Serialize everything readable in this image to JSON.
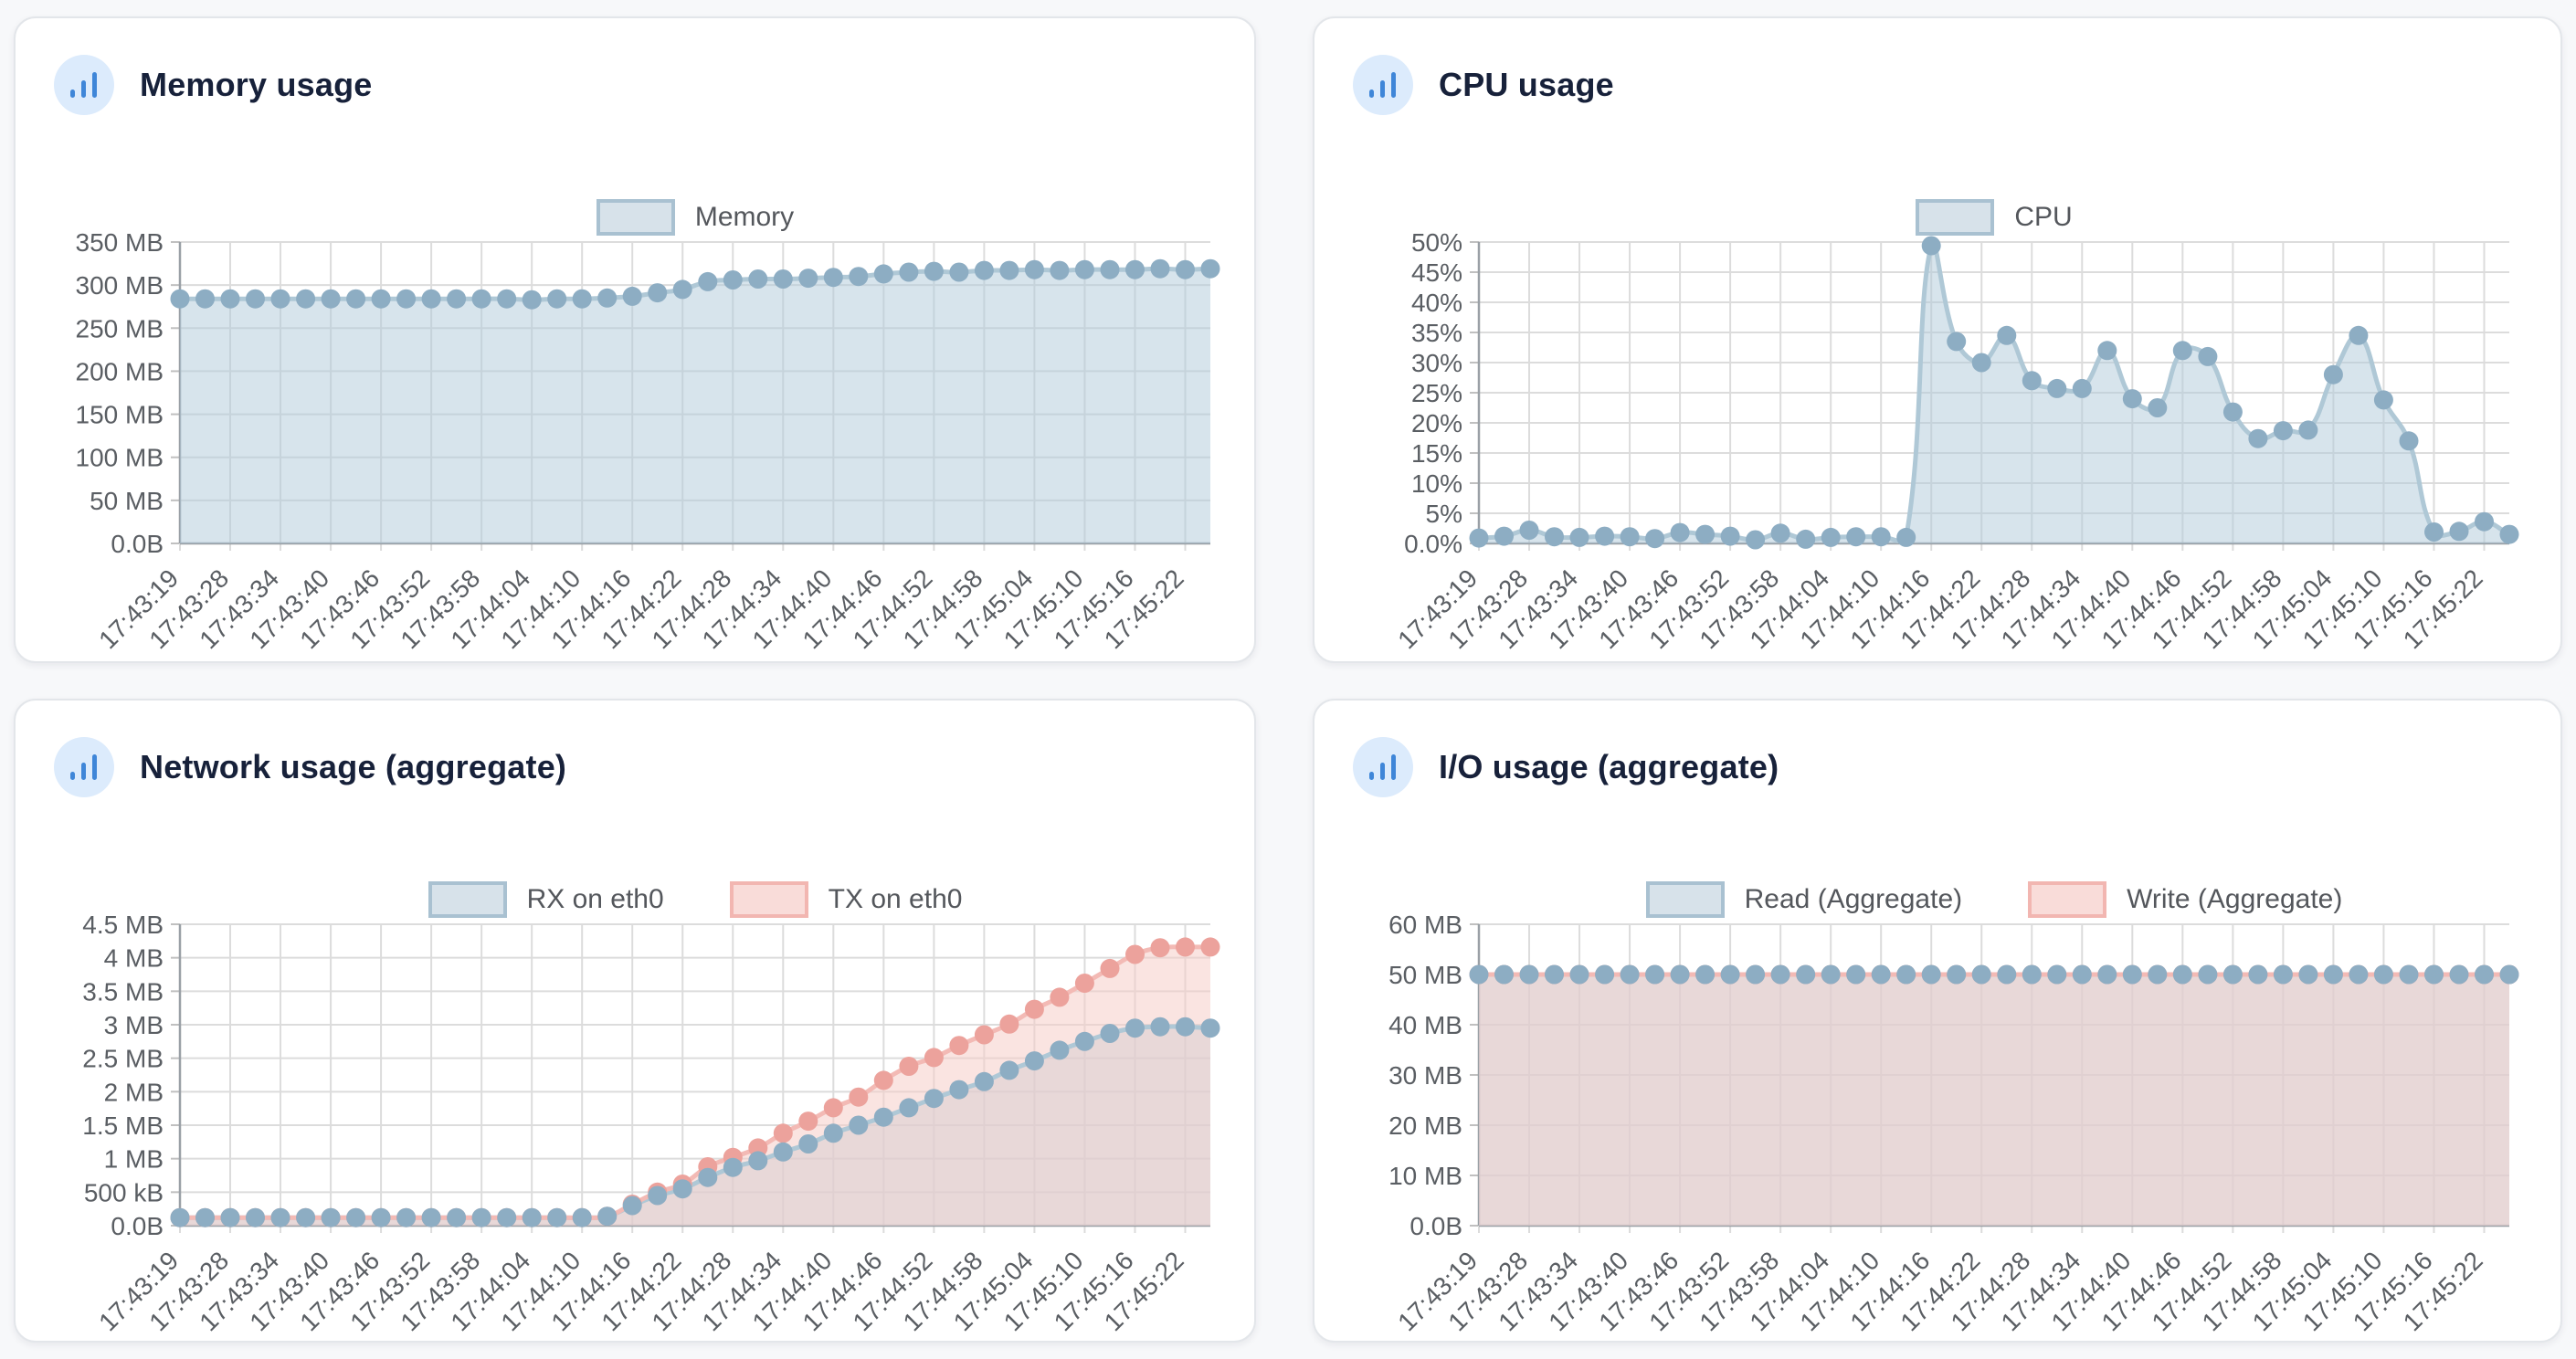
{
  "page": {
    "background_color": "#f7f8fa",
    "card_background": "#ffffff",
    "card_border_color": "#e3e6ea",
    "title_color": "#17213a",
    "icon_circle_color": "#dcebfc",
    "icon_bar_color": "#3f86d8",
    "gridline_color": "#dcdcdc",
    "axis_color": "#9aa0a6",
    "tick_label_color": "#5a5e63",
    "legend_label_color": "#54575c"
  },
  "palette": {
    "blue": {
      "line": "#afc8d6",
      "fill": "rgba(176,201,217,0.5)",
      "dot": "#8dadc3",
      "swatch_fill": "#d7e2ea",
      "swatch_border": "#a9c1d1"
    },
    "pink": {
      "line": "#f3bab5",
      "fill": "rgba(246,205,201,0.55)",
      "dot": "#eca29c",
      "swatch_fill": "#f9dcd9",
      "swatch_border": "#f2b6b1"
    }
  },
  "chart_data": [
    {
      "id": "memory",
      "type": "area",
      "title": "Memory usage",
      "icon": "bar-chart-icon",
      "legend_position": "top-center",
      "grid": true,
      "x_tick_labels": [
        "17:43:19",
        "17:43:28",
        "17:43:34",
        "17:43:40",
        "17:43:46",
        "17:43:52",
        "17:43:58",
        "17:44:04",
        "17:44:10",
        "17:44:16",
        "17:44:22",
        "17:44:28",
        "17:44:34",
        "17:44:40",
        "17:44:46",
        "17:44:52",
        "17:44:58",
        "17:45:04",
        "17:45:10",
        "17:45:16",
        "17:45:22"
      ],
      "labels_every_n_points": 2,
      "y_tick_labels": [
        "350 MB",
        "300 MB",
        "250 MB",
        "200 MB",
        "150 MB",
        "100 MB",
        "50 MB",
        "0.0B"
      ],
      "y_max": 350,
      "y_unit": "MB",
      "series": [
        {
          "name": "Memory",
          "color": "blue",
          "values": [
            284,
            284,
            284,
            284,
            284,
            284,
            284,
            284,
            284,
            284,
            284,
            284,
            284,
            284,
            283,
            284,
            284,
            285,
            287,
            291,
            295,
            304,
            306,
            307,
            307,
            308,
            309,
            310,
            313,
            315,
            316,
            315,
            317,
            317,
            318,
            317,
            318,
            318,
            318,
            319,
            318,
            319
          ]
        }
      ]
    },
    {
      "id": "cpu",
      "type": "area",
      "title": "CPU usage",
      "icon": "bar-chart-icon",
      "legend_position": "top-center",
      "grid": true,
      "x_tick_labels": [
        "17:43:19",
        "17:43:28",
        "17:43:34",
        "17:43:40",
        "17:43:46",
        "17:43:52",
        "17:43:58",
        "17:44:04",
        "17:44:10",
        "17:44:16",
        "17:44:22",
        "17:44:28",
        "17:44:34",
        "17:44:40",
        "17:44:46",
        "17:44:52",
        "17:44:58",
        "17:45:04",
        "17:45:10",
        "17:45:16",
        "17:45:22"
      ],
      "labels_every_n_points": 2,
      "y_tick_labels": [
        "50%",
        "45%",
        "40%",
        "35%",
        "30%",
        "25%",
        "20%",
        "15%",
        "10%",
        "5%",
        "0.0%"
      ],
      "y_max": 50,
      "y_unit": "%",
      "series": [
        {
          "name": "CPU",
          "color": "blue",
          "values": [
            0.9,
            1.2,
            2.2,
            1.1,
            1.0,
            1.2,
            1.1,
            0.8,
            1.8,
            1.5,
            1.2,
            0.6,
            1.7,
            0.7,
            1.0,
            1.1,
            1.1,
            1.0,
            49.4,
            33.5,
            30.0,
            34.5,
            27.0,
            25.7,
            25.7,
            32.0,
            24.0,
            22.5,
            32.0,
            31.0,
            21.8,
            17.4,
            18.7,
            18.8,
            28.0,
            34.5,
            23.8,
            17.0,
            1.9,
            2.0,
            3.6,
            1.5
          ]
        }
      ]
    },
    {
      "id": "network",
      "type": "area",
      "title": "Network usage (aggregate)",
      "icon": "bar-chart-icon",
      "legend_position": "top-center",
      "grid": true,
      "x_tick_labels": [
        "17:43:19",
        "17:43:28",
        "17:43:34",
        "17:43:40",
        "17:43:46",
        "17:43:52",
        "17:43:58",
        "17:44:04",
        "17:44:10",
        "17:44:16",
        "17:44:22",
        "17:44:28",
        "17:44:34",
        "17:44:40",
        "17:44:46",
        "17:44:52",
        "17:44:58",
        "17:45:04",
        "17:45:10",
        "17:45:16",
        "17:45:22"
      ],
      "labels_every_n_points": 2,
      "y_tick_labels": [
        "4.5 MB",
        "4 MB",
        "3.5 MB",
        "3 MB",
        "2.5 MB",
        "2 MB",
        "1.5 MB",
        "1 MB",
        "500 kB",
        "0.0B"
      ],
      "y_max": 4.5,
      "y_unit": "MB",
      "series": [
        {
          "name": "RX on eth0",
          "color": "blue",
          "values": [
            0.12,
            0.12,
            0.12,
            0.12,
            0.12,
            0.12,
            0.12,
            0.12,
            0.12,
            0.12,
            0.12,
            0.12,
            0.12,
            0.12,
            0.12,
            0.12,
            0.12,
            0.14,
            0.3,
            0.45,
            0.55,
            0.72,
            0.87,
            0.97,
            1.1,
            1.22,
            1.38,
            1.5,
            1.62,
            1.76,
            1.9,
            2.03,
            2.15,
            2.32,
            2.46,
            2.62,
            2.75,
            2.87,
            2.95,
            2.97,
            2.97,
            2.95
          ]
        },
        {
          "name": "TX on eth0",
          "color": "pink",
          "values": [
            0.12,
            0.12,
            0.12,
            0.12,
            0.12,
            0.12,
            0.12,
            0.12,
            0.12,
            0.12,
            0.12,
            0.12,
            0.12,
            0.12,
            0.12,
            0.12,
            0.12,
            0.14,
            0.32,
            0.5,
            0.62,
            0.88,
            1.02,
            1.16,
            1.38,
            1.56,
            1.76,
            1.92,
            2.17,
            2.38,
            2.51,
            2.69,
            2.85,
            3.01,
            3.23,
            3.41,
            3.62,
            3.84,
            4.05,
            4.15,
            4.16,
            4.16
          ]
        }
      ]
    },
    {
      "id": "io",
      "type": "area",
      "title": "I/O usage (aggregate)",
      "icon": "bar-chart-icon",
      "legend_position": "top-center",
      "grid": true,
      "x_tick_labels": [
        "17:43:19",
        "17:43:28",
        "17:43:34",
        "17:43:40",
        "17:43:46",
        "17:43:52",
        "17:43:58",
        "17:44:04",
        "17:44:10",
        "17:44:16",
        "17:44:22",
        "17:44:28",
        "17:44:34",
        "17:44:40",
        "17:44:46",
        "17:44:52",
        "17:44:58",
        "17:45:04",
        "17:45:10",
        "17:45:16",
        "17:45:22"
      ],
      "labels_every_n_points": 2,
      "y_tick_labels": [
        "60 MB",
        "50 MB",
        "40 MB",
        "30 MB",
        "20 MB",
        "10 MB",
        "0.0B"
      ],
      "y_max": 60,
      "y_unit": "MB",
      "series": [
        {
          "name": "Read (Aggregate)",
          "color": "blue",
          "values": [
            50,
            50,
            50,
            50,
            50,
            50,
            50,
            50,
            50,
            50,
            50,
            50,
            50,
            50,
            50,
            50,
            50,
            50,
            50,
            50,
            50,
            50,
            50,
            50,
            50,
            50,
            50,
            50,
            50,
            50,
            50,
            50,
            50,
            50,
            50,
            50,
            50,
            50,
            50,
            50,
            50,
            50
          ]
        },
        {
          "name": "Write (Aggregate)",
          "color": "pink",
          "values": [
            50,
            50,
            50,
            50,
            50,
            50,
            50,
            50,
            50,
            50,
            50,
            50,
            50,
            50,
            50,
            50,
            50,
            50,
            50,
            50,
            50,
            50,
            50,
            50,
            50,
            50,
            50,
            50,
            50,
            50,
            50,
            50,
            50,
            50,
            50,
            50,
            50,
            50,
            50,
            50,
            50,
            50
          ]
        }
      ]
    }
  ]
}
